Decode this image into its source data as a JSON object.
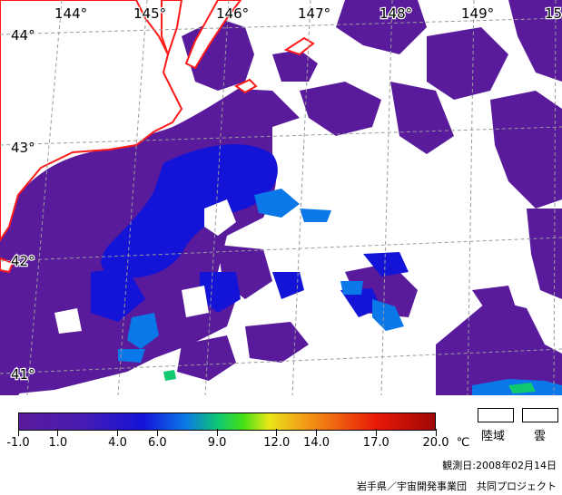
{
  "map": {
    "lon_labels": [
      "144°",
      "145°",
      "146°",
      "147°",
      "148°",
      "149°",
      "15"
    ],
    "lat_labels": [
      "44°",
      "43°",
      "42°",
      "41°"
    ]
  },
  "colorbar": {
    "unit": "℃",
    "tick_labels": [
      "-1.0",
      "1.0",
      "4.0",
      "6.0",
      "9.0",
      "12.0",
      "14.0",
      "17.0",
      "20.0"
    ],
    "tick_values": [
      -1.0,
      1.0,
      4.0,
      6.0,
      9.0,
      12.0,
      14.0,
      17.0,
      20.0
    ],
    "range": [
      -1.0,
      20.0
    ]
  },
  "legend": {
    "land_label": "陸域",
    "cloud_label": "雲"
  },
  "observation_date": "観測日:2008年02月14日",
  "credit": "岩手県／宇宙開発事業団　共同プロジェクト",
  "colors": {
    "land": "#ffffff",
    "coastline": "#ff1a1a",
    "grid": "#9a9a9a",
    "sst_cold": "#5a1a9c",
    "sst_blue": "#1414d8",
    "sst_cyan": "#0a78e8",
    "sst_green": "#10c870"
  }
}
